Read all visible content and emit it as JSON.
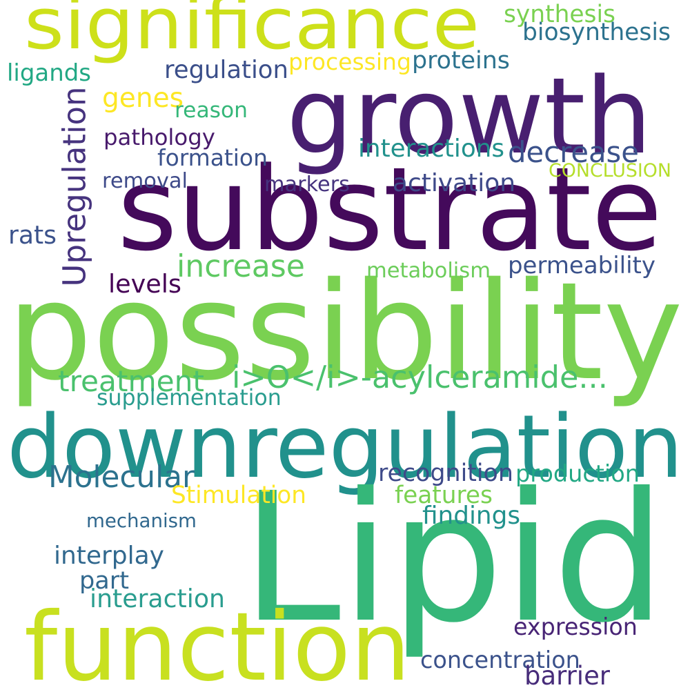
{
  "words": [
    {
      "text": "significance",
      "color": "#cde01a"
    },
    {
      "text": "growth",
      "color": "#481f70"
    },
    {
      "text": "substrate",
      "color": "#440a5b"
    },
    {
      "text": "possibility",
      "color": "#7ad151"
    },
    {
      "text": "downregulation",
      "color": "#21918c"
    },
    {
      "text": "Lipid",
      "color": "#35b779"
    },
    {
      "text": "function",
      "color": "#c8e020"
    },
    {
      "text": "Upregulation",
      "color": "#46337e"
    },
    {
      "text": "synthesis",
      "color": "#7ad151"
    },
    {
      "text": "biosynthesis",
      "color": "#2c728e"
    },
    {
      "text": "ligands",
      "color": "#22a884"
    },
    {
      "text": "regulation",
      "color": "#3b4f8a"
    },
    {
      "text": "processing",
      "color": "#fde725"
    },
    {
      "text": "proteins",
      "color": "#2c728e"
    },
    {
      "text": "genes",
      "color": "#fde725"
    },
    {
      "text": "reason",
      "color": "#35b779"
    },
    {
      "text": "pathology",
      "color": "#481a6c"
    },
    {
      "text": "decrease",
      "color": "#3b528b"
    },
    {
      "text": "formation",
      "color": "#3b528b"
    },
    {
      "text": "interactions",
      "color": "#21918c"
    },
    {
      "text": "CONCLUSION",
      "color": "#b5de2b"
    },
    {
      "text": "removal",
      "color": "#3e4a89"
    },
    {
      "text": "markers",
      "color": "#46337e"
    },
    {
      "text": "activation",
      "color": "#3e4989"
    },
    {
      "text": "rats",
      "color": "#3b528b"
    },
    {
      "text": "increase",
      "color": "#5ec962"
    },
    {
      "text": "metabolism",
      "color": "#6ccd5a"
    },
    {
      "text": "permeability",
      "color": "#3b528b"
    },
    {
      "text": "levels",
      "color": "#440154"
    },
    {
      "text": "treatment",
      "color": "#4ac16d"
    },
    {
      "text": "i>O</i>-acylceramide...",
      "color": "#4ac16d"
    },
    {
      "text": "supplementation",
      "color": "#2a9d8f"
    },
    {
      "text": "Molecular",
      "color": "#2c728e"
    },
    {
      "text": "recognition",
      "color": "#3e4a89"
    },
    {
      "text": "production",
      "color": "#22a884"
    },
    {
      "text": "Stimulation",
      "color": "#fde725"
    },
    {
      "text": "features",
      "color": "#7ad151"
    },
    {
      "text": "mechanism",
      "color": "#31688e"
    },
    {
      "text": "findings",
      "color": "#21918c"
    },
    {
      "text": "interplay",
      "color": "#31688e"
    },
    {
      "text": "part",
      "color": "#31688e"
    },
    {
      "text": "interaction",
      "color": "#2a9d8f"
    },
    {
      "text": "expression",
      "color": "#482475"
    },
    {
      "text": "concentration",
      "color": "#3b528b"
    },
    {
      "text": "barrier",
      "color": "#472c7a"
    }
  ]
}
